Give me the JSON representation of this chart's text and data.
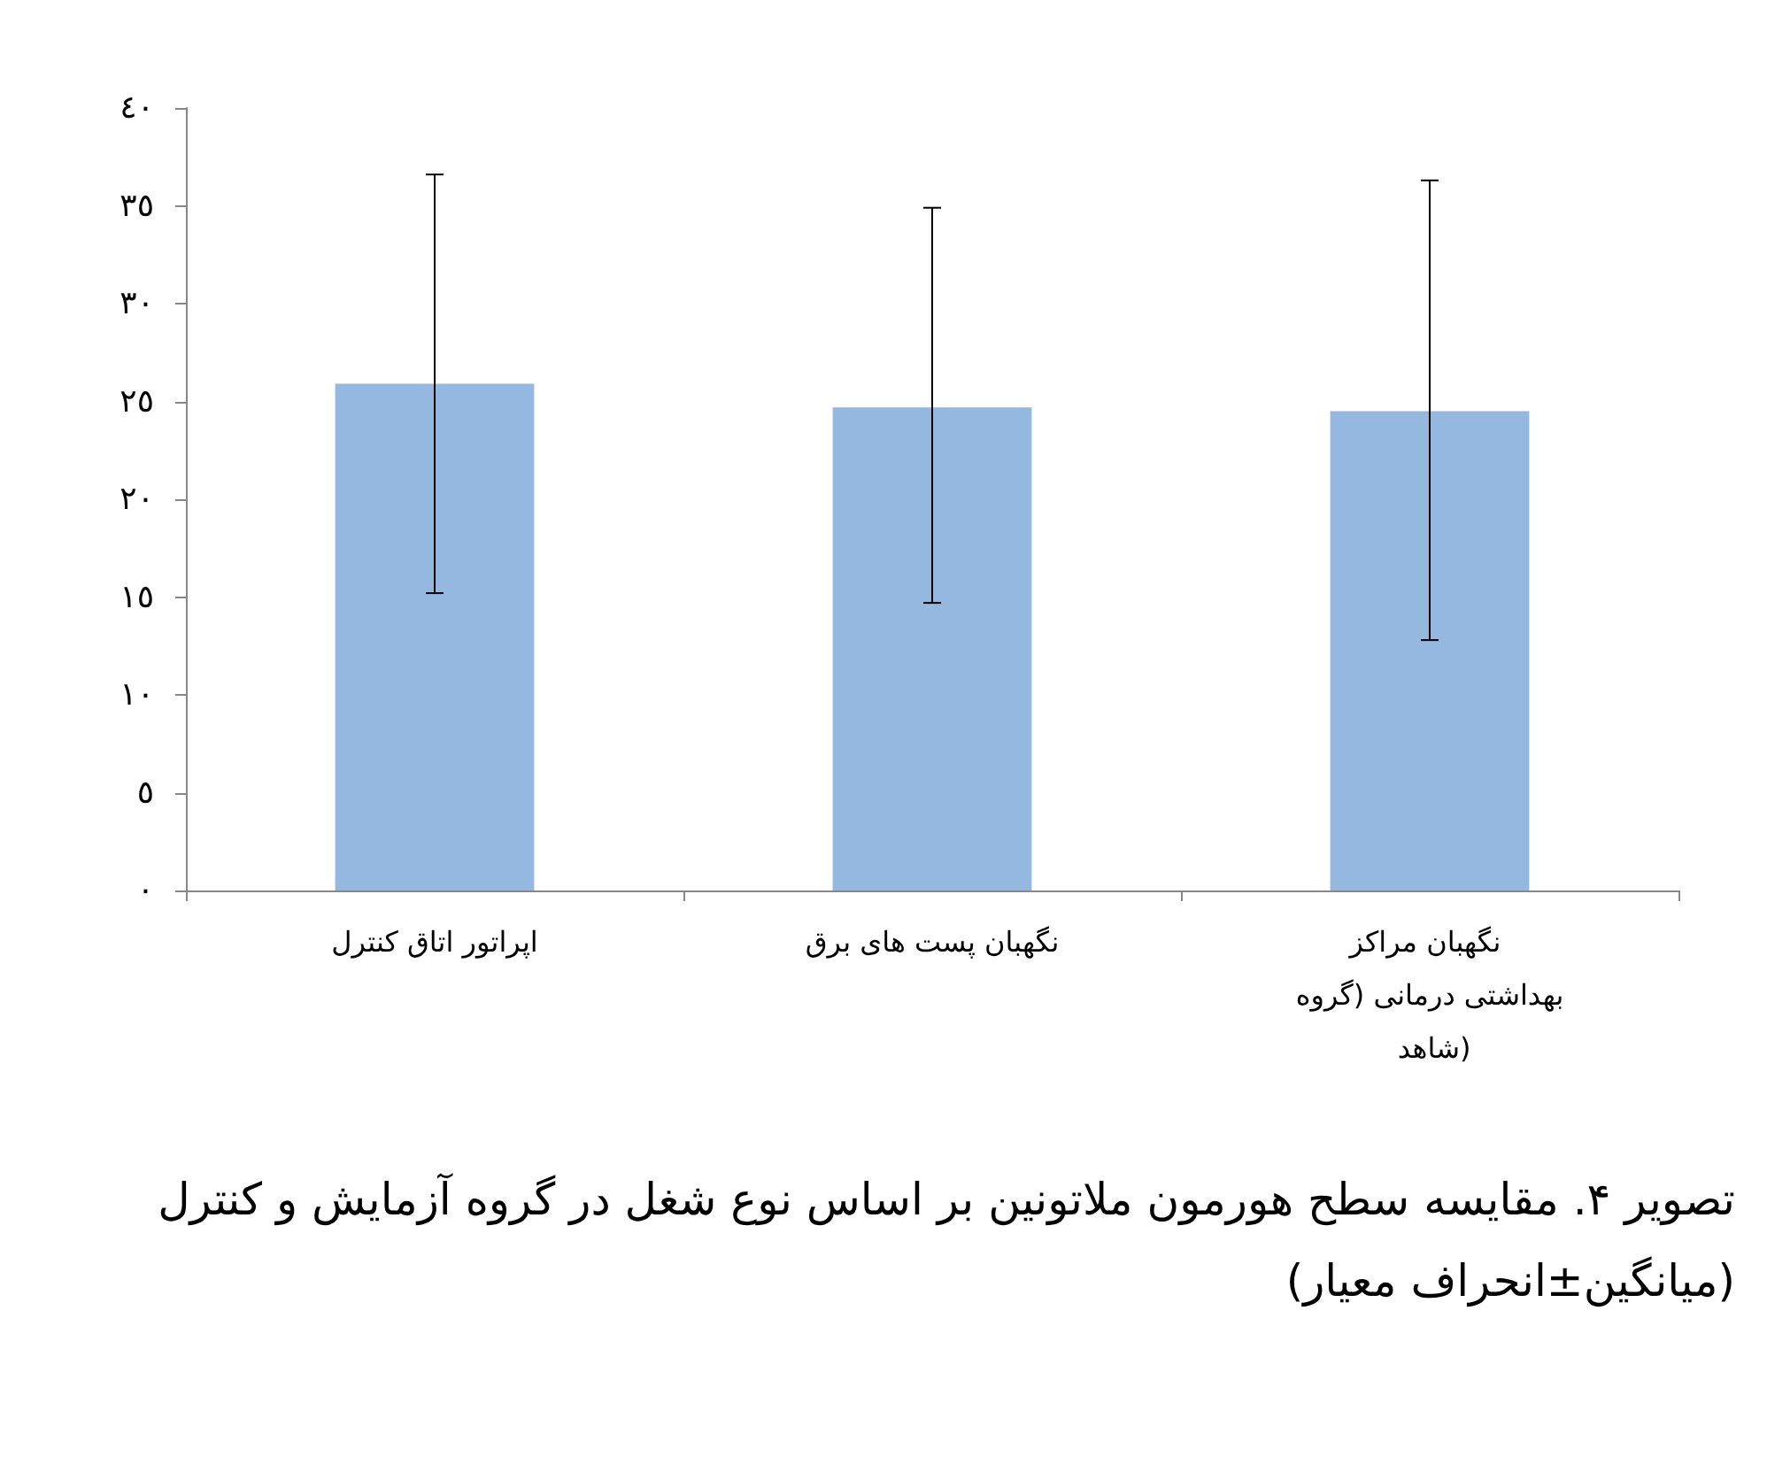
{
  "chart_data": {
    "type": "bar",
    "title": "تصویر ۴. مقایسه سطح هورمون ملاتونین بر اساس نوع شغل در گروه آزمایش و کنترل (میانگین±انحراف معیار)",
    "categories": [
      "اپراتور اتاق کنترل",
      "نگهبان پست های برق",
      "نگهبان مراکز بهداشتی درمانی (گروه شاهد)"
    ],
    "values": [
      25.9,
      24.7,
      24.5
    ],
    "errors": [
      [
        15.2,
        36.6
      ],
      [
        14.7,
        34.9
      ],
      [
        12.8,
        36.3
      ]
    ],
    "color": "#95b8e0",
    "ylim": [
      0,
      40
    ],
    "yticks": [
      {
        "value": 0,
        "label": "٠"
      },
      {
        "value": 5,
        "label": "٥"
      },
      {
        "value": 10,
        "label": "١٠"
      },
      {
        "value": 15,
        "label": "١٥"
      },
      {
        "value": 20,
        "label": "٢٠"
      },
      {
        "value": 25,
        "label": "٢٥"
      },
      {
        "value": 30,
        "label": "٣٠"
      },
      {
        "value": 35,
        "label": "٣٥"
      },
      {
        "value": 40,
        "label": "٤٠"
      }
    ],
    "grid": false
  }
}
